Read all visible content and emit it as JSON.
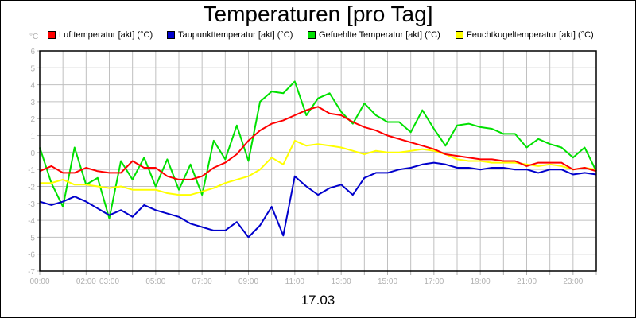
{
  "header": {
    "title": "Temperaturen [pro Tag]",
    "unit": "°C"
  },
  "footer": {
    "date": "17.03"
  },
  "legend": [
    {
      "label": "Lufttemperatur [akt] (°C)",
      "color": "#ff0000"
    },
    {
      "label": "Taupunkttemperatur [akt] (°C)",
      "color": "#0000cc"
    },
    {
      "label": "Gefuehlte Temperatur [akt] (°C)",
      "color": "#00e000"
    },
    {
      "label": "Feuchtkugeltemperatur [akt] (°C)",
      "color": "#ffff00"
    }
  ],
  "chart_data": {
    "type": "line",
    "title": "Temperaturen [pro Tag]",
    "xlabel": "17.03",
    "ylabel": "°C",
    "ylim": [
      -7,
      6
    ],
    "xlim": [
      0,
      24
    ],
    "grid": true,
    "legend_position": "top",
    "yticks": [
      "6",
      "5",
      "4",
      "3",
      "2",
      "1",
      "0",
      "-1",
      "-2",
      "-3",
      "-4",
      "-5",
      "-6",
      "-7"
    ],
    "xticks": [
      "00:00",
      "02:00",
      "03:00",
      "05:00",
      "07:00",
      "09:00",
      "11:00",
      "13:00",
      "15:00",
      "17:00",
      "19:00",
      "21:00",
      "23:00"
    ],
    "x_hours": [
      0,
      0.5,
      1,
      1.5,
      2,
      2.5,
      3,
      3.5,
      4,
      4.5,
      5,
      5.5,
      6,
      6.5,
      7,
      7.5,
      8,
      8.5,
      9,
      9.5,
      10,
      10.5,
      11,
      11.5,
      12,
      12.5,
      13,
      13.5,
      14,
      14.5,
      15,
      15.5,
      16,
      16.5,
      17,
      17.5,
      18,
      18.5,
      19,
      19.5,
      20,
      20.5,
      21,
      21.5,
      22,
      22.5,
      23,
      23.5,
      24
    ],
    "series": [
      {
        "name": "Lufttemperatur [akt] (°C)",
        "color": "#ff0000",
        "values": [
          -1.1,
          -0.8,
          -1.2,
          -1.2,
          -0.9,
          -1.1,
          -1.2,
          -1.2,
          -0.5,
          -0.9,
          -0.9,
          -1.4,
          -1.6,
          -1.6,
          -1.4,
          -0.9,
          -0.6,
          -0.1,
          0.7,
          1.3,
          1.7,
          1.9,
          2.2,
          2.5,
          2.7,
          2.3,
          2.2,
          1.8,
          1.5,
          1.3,
          1.0,
          0.8,
          0.6,
          0.4,
          0.2,
          -0.1,
          -0.2,
          -0.3,
          -0.4,
          -0.4,
          -0.5,
          -0.5,
          -0.8,
          -0.6,
          -0.6,
          -0.6,
          -1.0,
          -0.9,
          -1.1
        ]
      },
      {
        "name": "Taupunkttemperatur [akt] (°C)",
        "color": "#0000cc",
        "values": [
          -2.9,
          -3.1,
          -2.9,
          -2.6,
          -2.9,
          -3.3,
          -3.7,
          -3.4,
          -3.8,
          -3.1,
          -3.4,
          -3.6,
          -3.8,
          -4.2,
          -4.4,
          -4.6,
          -4.6,
          -4.1,
          -5.0,
          -4.3,
          -3.2,
          -4.9,
          -1.4,
          -2.0,
          -2.5,
          -2.1,
          -1.9,
          -2.5,
          -1.5,
          -1.2,
          -1.2,
          -1.0,
          -0.9,
          -0.7,
          -0.6,
          -0.7,
          -0.9,
          -0.9,
          -1.0,
          -0.9,
          -0.9,
          -1.0,
          -1.0,
          -1.2,
          -1.0,
          -1.0,
          -1.3,
          -1.2,
          -1.3
        ]
      },
      {
        "name": "Gefuehlte Temperatur [akt] (°C)",
        "color": "#00e000",
        "values": [
          0.3,
          -1.8,
          -3.2,
          0.3,
          -1.9,
          -1.5,
          -3.9,
          -0.5,
          -1.6,
          -0.3,
          -2.0,
          -0.4,
          -2.2,
          -0.7,
          -2.5,
          0.7,
          -0.4,
          1.6,
          -0.5,
          3.0,
          3.6,
          3.5,
          4.2,
          2.2,
          3.2,
          3.5,
          2.4,
          1.7,
          2.9,
          2.2,
          1.8,
          1.8,
          1.2,
          2.5,
          1.4,
          0.4,
          1.6,
          1.7,
          1.5,
          1.4,
          1.1,
          1.1,
          0.3,
          0.8,
          0.5,
          0.3,
          -0.3,
          0.3,
          -1.1
        ]
      },
      {
        "name": "Feuchtkugeltemperatur [akt] (°C)",
        "color": "#ffff00",
        "values": [
          -1.8,
          -1.8,
          -1.6,
          -1.9,
          -1.9,
          -2.0,
          -2.1,
          -2.0,
          -2.2,
          -2.2,
          -2.2,
          -2.4,
          -2.5,
          -2.5,
          -2.3,
          -2.1,
          -1.8,
          -1.6,
          -1.4,
          -1.0,
          -0.3,
          -0.7,
          0.7,
          0.4,
          0.5,
          0.4,
          0.3,
          0.1,
          -0.1,
          0.1,
          0.0,
          0.0,
          0.1,
          0.2,
          0.1,
          -0.1,
          -0.4,
          -0.5,
          -0.5,
          -0.6,
          -0.6,
          -0.6,
          -0.7,
          -0.8,
          -0.7,
          -0.8,
          -1.0,
          -0.9,
          -1.0
        ]
      }
    ]
  }
}
